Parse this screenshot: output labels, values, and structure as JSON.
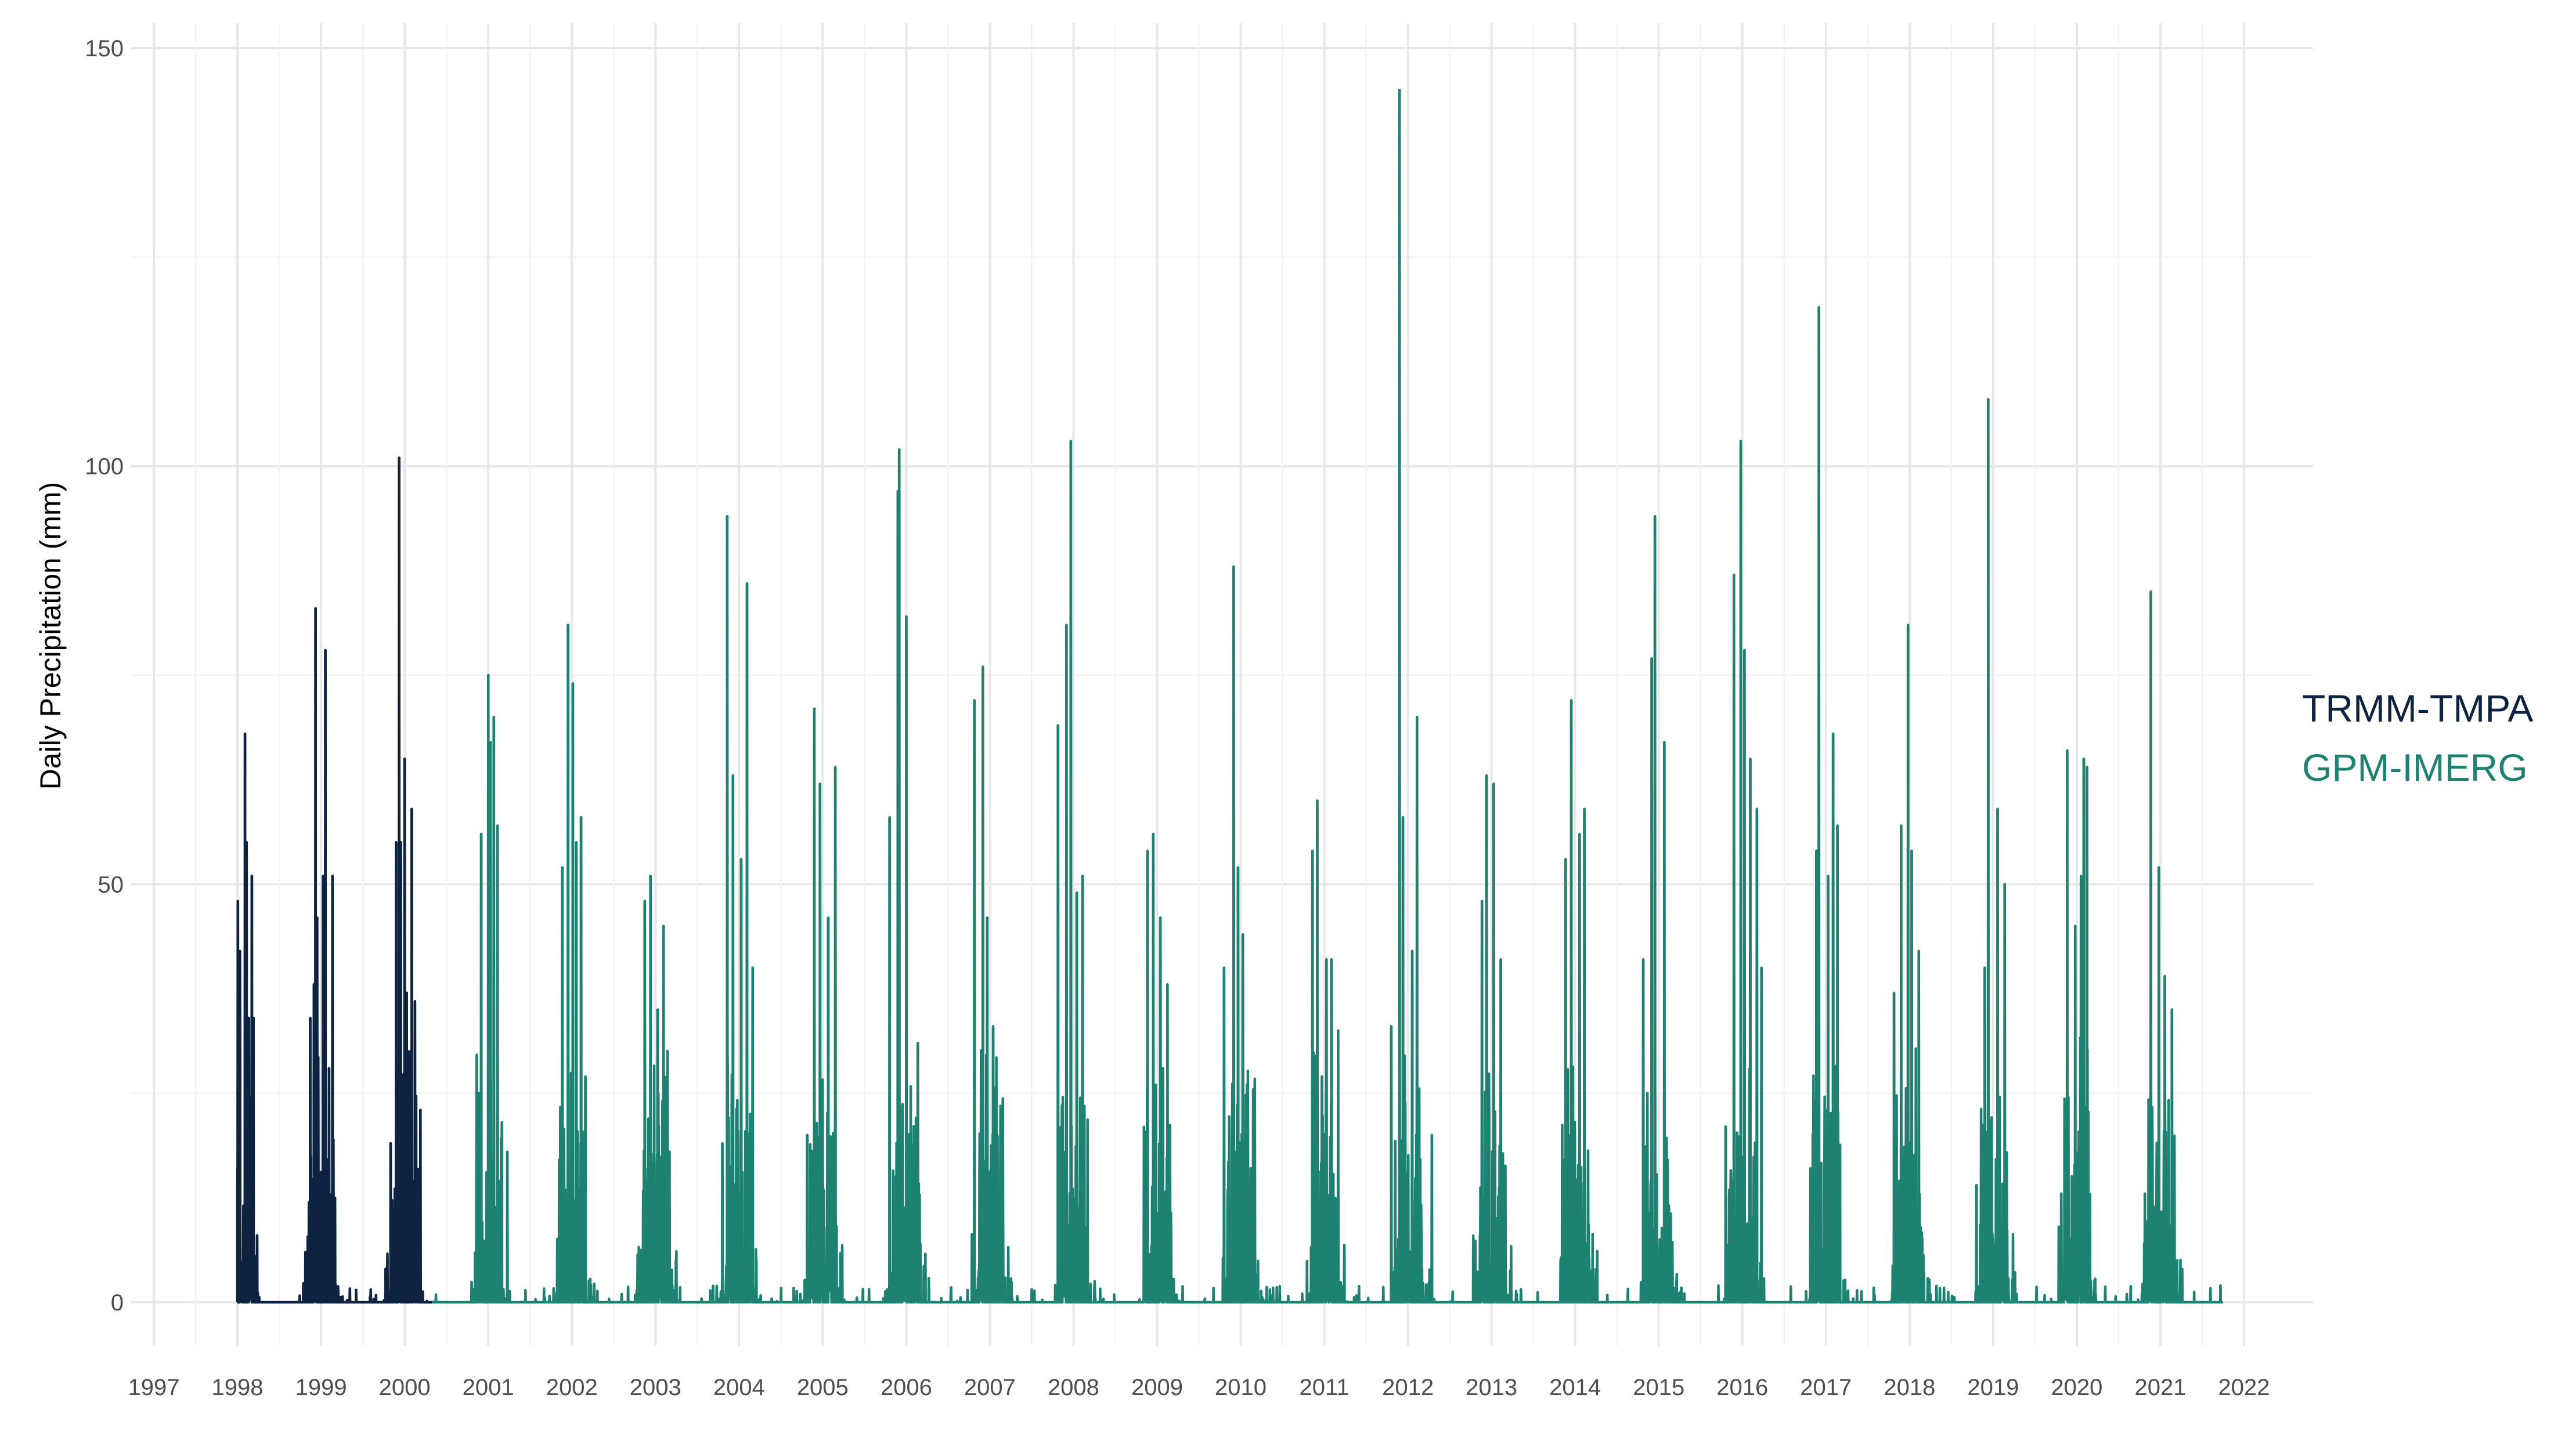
{
  "chart_data": {
    "type": "line",
    "title": "",
    "xlabel": "",
    "ylabel": "Daily Precipitation (mm)",
    "ylim": [
      -8,
      152
    ],
    "xlim": [
      1996.95,
      2022.5
    ],
    "y_ticks": [
      0,
      50,
      100,
      150
    ],
    "x_ticks": [
      "1997",
      "1998",
      "1999",
      "2000",
      "2001",
      "2002",
      "2003",
      "2004",
      "2005",
      "2006",
      "2007",
      "2008",
      "2009",
      "2010",
      "2011",
      "2012",
      "2013",
      "2014",
      "2015",
      "2016",
      "2017",
      "2018",
      "2019",
      "2020",
      "2021",
      "2022"
    ],
    "grid": true,
    "legend_position": "right",
    "series": [
      {
        "name": "TRMM-TMPA",
        "color": "#0d2340",
        "start": 1998.0,
        "end": 2000.33,
        "peaks": [
          [
            "1998-01-03",
            48
          ],
          [
            "1998-01-12",
            42
          ],
          [
            "1998-02-03",
            68
          ],
          [
            "1998-02-10",
            55
          ],
          [
            "1998-02-20",
            34
          ],
          [
            "1998-03-05",
            51
          ],
          [
            "1998-03-12",
            34
          ],
          [
            "1998-03-28",
            8
          ],
          [
            "1998-10-25",
            6
          ],
          [
            "1998-11-15",
            34
          ],
          [
            "1998-12-01",
            38
          ],
          [
            "1998-12-08",
            83
          ],
          [
            "1998-12-15",
            46
          ],
          [
            "1999-01-10",
            51
          ],
          [
            "1999-01-20",
            78
          ],
          [
            "1999-02-05",
            28
          ],
          [
            "1999-02-20",
            51
          ],
          [
            "1999-10-10",
            4
          ],
          [
            "1999-11-01",
            19
          ],
          [
            "1999-11-25",
            55
          ],
          [
            "1999-12-05",
            27
          ],
          [
            "1999-12-08",
            101
          ],
          [
            "1999-12-15",
            55
          ],
          [
            "2000-01-01",
            65
          ],
          [
            "2000-01-10",
            37
          ],
          [
            "2000-01-20",
            30
          ],
          [
            "2000-02-01",
            59
          ],
          [
            "2000-02-15",
            36
          ],
          [
            "2000-03-10",
            23
          ]
        ]
      },
      {
        "name": "GPM-IMERG",
        "color": "#1e8272",
        "start": 2000.33,
        "end": 2021.75,
        "peaks": [
          [
            "2000-11-10",
            17
          ],
          [
            "2000-12-01",
            56
          ],
          [
            "2001-01-01",
            75
          ],
          [
            "2001-01-10",
            67
          ],
          [
            "2001-01-25",
            70
          ],
          [
            "2001-02-10",
            57
          ],
          [
            "2001-03-25",
            18
          ],
          [
            "2001-11-20",
            52
          ],
          [
            "2001-12-15",
            81
          ],
          [
            "2002-01-05",
            74
          ],
          [
            "2002-01-20",
            55
          ],
          [
            "2002-02-10",
            58
          ],
          [
            "2002-03-01",
            27
          ],
          [
            "2002-11-15",
            48
          ],
          [
            "2002-12-10",
            51
          ],
          [
            "2003-01-10",
            35
          ],
          [
            "2003-02-05",
            45
          ],
          [
            "2003-10-20",
            19
          ],
          [
            "2003-11-10",
            94
          ],
          [
            "2003-12-05",
            63
          ],
          [
            "2004-01-10",
            53
          ],
          [
            "2004-02-05",
            86
          ],
          [
            "2004-03-01",
            40
          ],
          [
            "2004-10-25",
            20
          ],
          [
            "2004-11-25",
            71
          ],
          [
            "2004-12-20",
            62
          ],
          [
            "2005-01-25",
            46
          ],
          [
            "2005-02-25",
            64
          ],
          [
            "2005-10-20",
            58
          ],
          [
            "2005-11-25",
            97
          ],
          [
            "2005-12-01",
            102
          ],
          [
            "2006-01-01",
            82
          ],
          [
            "2006-02-20",
            31
          ],
          [
            "2006-10-25",
            72
          ],
          [
            "2006-12-01",
            76
          ],
          [
            "2006-12-20",
            46
          ],
          [
            "2007-01-15",
            33
          ],
          [
            "2007-10-25",
            69
          ],
          [
            "2007-12-01",
            81
          ],
          [
            "2007-12-20",
            103
          ],
          [
            "2008-01-15",
            49
          ],
          [
            "2008-02-10",
            51
          ],
          [
            "2008-11-20",
            54
          ],
          [
            "2008-12-15",
            56
          ],
          [
            "2009-01-15",
            46
          ],
          [
            "2009-02-15",
            38
          ],
          [
            "2009-10-20",
            40
          ],
          [
            "2009-12-01",
            88
          ],
          [
            "2009-12-20",
            52
          ],
          [
            "2010-01-10",
            44
          ],
          [
            "2010-11-10",
            54
          ],
          [
            "2010-12-01",
            60
          ],
          [
            "2011-01-10",
            41
          ],
          [
            "2011-02-01",
            41
          ],
          [
            "2011-10-20",
            33
          ],
          [
            "2011-11-25",
            145
          ],
          [
            "2011-12-10",
            58
          ],
          [
            "2012-01-20",
            42
          ],
          [
            "2012-02-10",
            70
          ],
          [
            "2012-04-15",
            20
          ],
          [
            "2012-11-20",
            48
          ],
          [
            "2012-12-10",
            63
          ],
          [
            "2013-01-10",
            62
          ],
          [
            "2013-02-10",
            41
          ],
          [
            "2013-11-20",
            53
          ],
          [
            "2013-12-15",
            72
          ],
          [
            "2014-01-20",
            56
          ],
          [
            "2014-02-10",
            59
          ],
          [
            "2014-10-25",
            41
          ],
          [
            "2014-12-01",
            77
          ],
          [
            "2014-12-15",
            94
          ],
          [
            "2015-01-25",
            67
          ],
          [
            "2015-10-20",
            21
          ],
          [
            "2015-11-25",
            87
          ],
          [
            "2015-12-25",
            103
          ],
          [
            "2016-01-10",
            78
          ],
          [
            "2016-02-05",
            65
          ],
          [
            "2016-03-05",
            59
          ],
          [
            "2016-03-25",
            40
          ],
          [
            "2016-10-25",
            16
          ],
          [
            "2016-11-20",
            54
          ],
          [
            "2016-12-01",
            119
          ],
          [
            "2017-01-10",
            51
          ],
          [
            "2017-02-01",
            68
          ],
          [
            "2017-02-20",
            57
          ],
          [
            "2017-10-25",
            37
          ],
          [
            "2017-11-25",
            57
          ],
          [
            "2017-12-25",
            81
          ],
          [
            "2018-01-10",
            54
          ],
          [
            "2018-02-10",
            42
          ],
          [
            "2018-10-20",
            14
          ],
          [
            "2018-11-25",
            40
          ],
          [
            "2018-12-10",
            108
          ],
          [
            "2019-01-20",
            59
          ],
          [
            "2019-02-20",
            50
          ],
          [
            "2019-10-25",
            13
          ],
          [
            "2019-11-20",
            66
          ],
          [
            "2019-12-25",
            45
          ],
          [
            "2020-01-20",
            51
          ],
          [
            "2020-02-01",
            65
          ],
          [
            "2020-02-15",
            64
          ],
          [
            "2020-10-25",
            13
          ],
          [
            "2020-11-20",
            85
          ],
          [
            "2020-12-25",
            52
          ],
          [
            "2021-01-20",
            39
          ],
          [
            "2021-02-20",
            35
          ],
          [
            "2021-03-15",
            5
          ],
          [
            "2021-09-20",
            2
          ]
        ]
      }
    ]
  }
}
